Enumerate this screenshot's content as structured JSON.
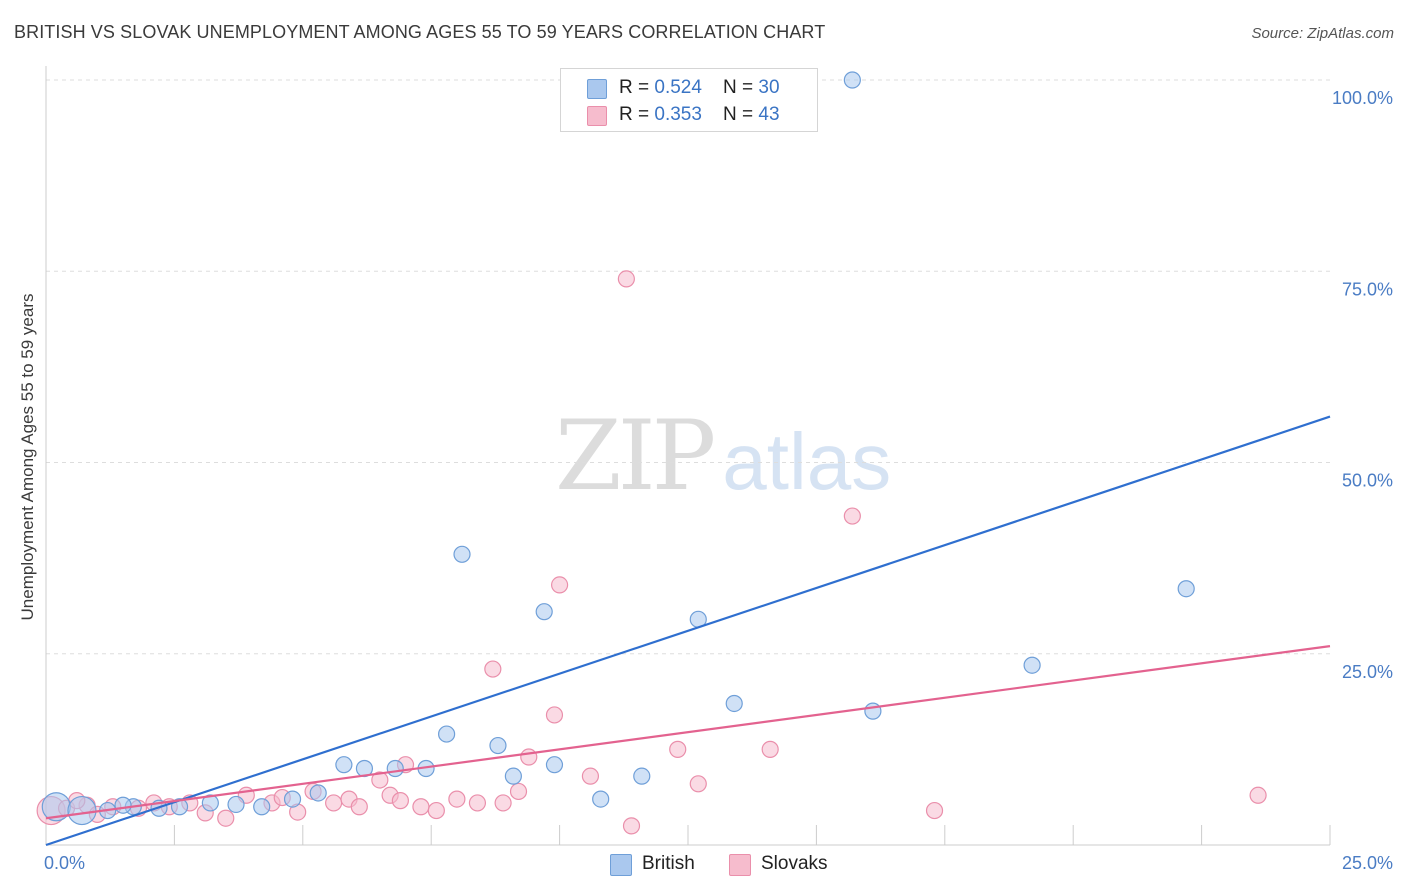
{
  "title": "BRITISH VS SLOVAK UNEMPLOYMENT AMONG AGES 55 TO 59 YEARS CORRELATION CHART",
  "source": "Source: ZipAtlas.com",
  "watermark": {
    "zip": "ZIP",
    "atlas": "atlas"
  },
  "legend": {
    "british": {
      "r_label": "R = ",
      "r": "0.524",
      "n_label": "N = ",
      "n": "30"
    },
    "slovaks": {
      "r_label": "R = ",
      "r": "0.353",
      "n_label": "N = ",
      "n": "43"
    }
  },
  "bottom_legend": {
    "british": "British",
    "slovaks": "Slovaks"
  },
  "colors": {
    "british_fill": "#aac8ee",
    "british_stroke": "#6f9fd8",
    "british_line": "#2f6fcf",
    "slovaks_fill": "#f6bccd",
    "slovaks_stroke": "#ea8fab",
    "slovaks_line": "#e3628f",
    "grid": "#dddddd",
    "tick_text": "#4a7cc4"
  },
  "chart_data": {
    "type": "scatter",
    "title": "BRITISH VS SLOVAK UNEMPLOYMENT AMONG AGES 55 TO 59 YEARS CORRELATION CHART",
    "xlabel": "",
    "ylabel": "Unemployment Among Ages 55 to 59 years",
    "xlim": [
      0,
      25
    ],
    "ylim": [
      0,
      100
    ],
    "x_tick_labels": [
      "0.0%",
      "25.0%"
    ],
    "y_tick_labels": [
      "100.0%",
      "75.0%",
      "50.0%",
      "25.0%"
    ],
    "y_tick_values": [
      100,
      75,
      50,
      25
    ],
    "series": [
      {
        "name": "British",
        "r": 0.524,
        "n": 30,
        "trend": {
          "x0": 0,
          "y0": 0,
          "x1": 25,
          "y1": 56
        },
        "points": [
          {
            "x": 0.2,
            "y": 5.0,
            "big": true
          },
          {
            "x": 0.7,
            "y": 4.5,
            "big": true
          },
          {
            "x": 1.2,
            "y": 4.5
          },
          {
            "x": 1.7,
            "y": 5.0
          },
          {
            "x": 2.2,
            "y": 4.8
          },
          {
            "x": 3.2,
            "y": 5.5
          },
          {
            "x": 3.7,
            "y": 5.3
          },
          {
            "x": 4.2,
            "y": 5.0
          },
          {
            "x": 4.8,
            "y": 6.0
          },
          {
            "x": 5.3,
            "y": 6.8
          },
          {
            "x": 5.8,
            "y": 10.5
          },
          {
            "x": 6.2,
            "y": 10.0
          },
          {
            "x": 6.8,
            "y": 10.0
          },
          {
            "x": 7.4,
            "y": 10.0
          },
          {
            "x": 7.8,
            "y": 14.5
          },
          {
            "x": 8.1,
            "y": 38.0
          },
          {
            "x": 8.8,
            "y": 13.0
          },
          {
            "x": 9.1,
            "y": 9.0
          },
          {
            "x": 9.7,
            "y": 30.5
          },
          {
            "x": 9.9,
            "y": 10.5
          },
          {
            "x": 10.8,
            "y": 6.0
          },
          {
            "x": 11.6,
            "y": 9.0
          },
          {
            "x": 12.7,
            "y": 29.5
          },
          {
            "x": 13.4,
            "y": 18.5
          },
          {
            "x": 15.7,
            "y": 100.0
          },
          {
            "x": 16.1,
            "y": 17.5
          },
          {
            "x": 19.2,
            "y": 23.5
          },
          {
            "x": 22.2,
            "y": 33.5
          },
          {
            "x": 1.5,
            "y": 5.2
          },
          {
            "x": 2.6,
            "y": 5.0
          }
        ]
      },
      {
        "name": "Slovaks",
        "r": 0.353,
        "n": 43,
        "trend": {
          "x0": 0,
          "y0": 3.5,
          "x1": 25,
          "y1": 26
        },
        "points": [
          {
            "x": 0.1,
            "y": 4.5,
            "big": true
          },
          {
            "x": 0.4,
            "y": 4.8
          },
          {
            "x": 0.8,
            "y": 5.2
          },
          {
            "x": 1.3,
            "y": 5.0
          },
          {
            "x": 1.8,
            "y": 4.8
          },
          {
            "x": 2.1,
            "y": 5.5
          },
          {
            "x": 2.4,
            "y": 5.0
          },
          {
            "x": 2.8,
            "y": 5.5
          },
          {
            "x": 3.1,
            "y": 4.2
          },
          {
            "x": 3.5,
            "y": 3.5
          },
          {
            "x": 3.9,
            "y": 6.5
          },
          {
            "x": 4.4,
            "y": 5.5
          },
          {
            "x": 4.9,
            "y": 4.3
          },
          {
            "x": 5.2,
            "y": 7.0
          },
          {
            "x": 5.6,
            "y": 5.5
          },
          {
            "x": 5.9,
            "y": 6.0
          },
          {
            "x": 6.1,
            "y": 5.0
          },
          {
            "x": 6.5,
            "y": 8.5
          },
          {
            "x": 6.7,
            "y": 6.5
          },
          {
            "x": 7.0,
            "y": 10.5
          },
          {
            "x": 7.3,
            "y": 5.0
          },
          {
            "x": 7.6,
            "y": 4.5
          },
          {
            "x": 8.0,
            "y": 6.0
          },
          {
            "x": 8.4,
            "y": 5.5
          },
          {
            "x": 8.7,
            "y": 23.0
          },
          {
            "x": 8.9,
            "y": 5.5
          },
          {
            "x": 9.2,
            "y": 7.0
          },
          {
            "x": 9.4,
            "y": 11.5
          },
          {
            "x": 9.9,
            "y": 17.0
          },
          {
            "x": 10.0,
            "y": 34.0
          },
          {
            "x": 10.6,
            "y": 9.0
          },
          {
            "x": 11.3,
            "y": 74.0
          },
          {
            "x": 11.4,
            "y": 2.5
          },
          {
            "x": 12.3,
            "y": 12.5
          },
          {
            "x": 12.7,
            "y": 8.0
          },
          {
            "x": 14.1,
            "y": 12.5
          },
          {
            "x": 15.7,
            "y": 43.0
          },
          {
            "x": 17.3,
            "y": 4.5
          },
          {
            "x": 23.6,
            "y": 6.5
          },
          {
            "x": 1.0,
            "y": 4.0
          },
          {
            "x": 4.6,
            "y": 6.2
          },
          {
            "x": 6.9,
            "y": 5.8
          },
          {
            "x": 0.6,
            "y": 5.8
          }
        ]
      }
    ]
  }
}
